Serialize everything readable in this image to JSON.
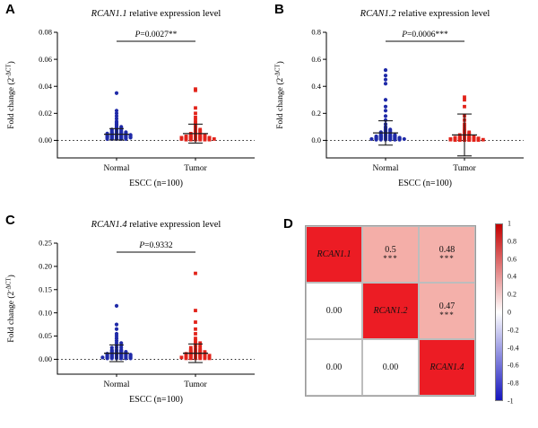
{
  "letters": [
    "A",
    "B",
    "C",
    "D"
  ],
  "accent_colors": {
    "normal_blue": "#1f2aa8",
    "tumor_red": "#e2231a",
    "heat_red": "#ec1c24"
  },
  "chart_data": [
    {
      "panel": "A",
      "type": "scatter",
      "title_gene": "RCAN1.1",
      "title_rest": " relative expression level",
      "p_prefix": "P",
      "p_text": "=0.0027**",
      "ylabel_pre": "Fold change (2",
      "ylabel_sup": "-ΔCT",
      "ylabel_post": ")",
      "xlabel": "ESCC (n=100)",
      "ylim": [
        -0.013,
        0.08
      ],
      "yticks": [
        0,
        0.02,
        0.04,
        0.06,
        0.08
      ],
      "ytick_labels": [
        "0.00",
        "0.02",
        "0.04",
        "0.06",
        "0.08"
      ],
      "groups": [
        {
          "label": "Normal",
          "color": "#1f2aa8",
          "marker": "circle",
          "mean": 0.0045,
          "sd": 0.0042,
          "points_value_count": [
            [
              0.001,
              5
            ],
            [
              0.0015,
              4
            ],
            [
              0.002,
              6
            ],
            [
              0.0025,
              5
            ],
            [
              0.003,
              6
            ],
            [
              0.0035,
              5
            ],
            [
              0.004,
              6
            ],
            [
              0.0045,
              4
            ],
            [
              0.005,
              5
            ],
            [
              0.0055,
              3
            ],
            [
              0.006,
              4
            ],
            [
              0.007,
              3
            ],
            [
              0.008,
              3
            ],
            [
              0.009,
              2
            ],
            [
              0.01,
              2
            ],
            [
              0.011,
              1
            ],
            [
              0.012,
              1
            ],
            [
              0.013,
              1
            ],
            [
              0.014,
              1
            ],
            [
              0.016,
              1
            ],
            [
              0.018,
              1
            ],
            [
              0.02,
              1
            ],
            [
              0.022,
              1
            ],
            [
              0.035,
              1
            ]
          ]
        },
        {
          "label": "Tumor",
          "color": "#e2231a",
          "marker": "square",
          "mean": 0.005,
          "sd": 0.007,
          "points_value_count": [
            [
              0.0005,
              6
            ],
            [
              0.001,
              8
            ],
            [
              0.0015,
              6
            ],
            [
              0.002,
              7
            ],
            [
              0.0025,
              5
            ],
            [
              0.003,
              5
            ],
            [
              0.0035,
              4
            ],
            [
              0.004,
              4
            ],
            [
              0.005,
              3
            ],
            [
              0.006,
              2
            ],
            [
              0.007,
              2
            ],
            [
              0.008,
              2
            ],
            [
              0.009,
              1
            ],
            [
              0.01,
              1
            ],
            [
              0.011,
              1
            ],
            [
              0.012,
              1
            ],
            [
              0.013,
              1
            ],
            [
              0.015,
              1
            ],
            [
              0.017,
              1
            ],
            [
              0.02,
              1
            ],
            [
              0.024,
              1
            ],
            [
              0.037,
              1
            ],
            [
              0.038,
              1
            ]
          ]
        }
      ],
      "zero_line_dotted": true
    },
    {
      "panel": "B",
      "type": "scatter",
      "title_gene": "RCAN1.2",
      "title_rest": " relative expression level",
      "p_prefix": "P",
      "p_text": "=0.0006***",
      "ylabel_pre": "Fold change (2",
      "ylabel_sup": "-ΔCT",
      "ylabel_post": ")",
      "xlabel": "ESCC (n=100)",
      "ylim": [
        -0.13,
        0.8
      ],
      "yticks": [
        0,
        0.2,
        0.4,
        0.6,
        0.8
      ],
      "ytick_labels": [
        "0.0",
        "0.2",
        "0.4",
        "0.6",
        "0.8"
      ],
      "groups": [
        {
          "label": "Normal",
          "color": "#1f2aa8",
          "marker": "circle",
          "mean": 0.055,
          "sd": 0.09,
          "points_value_count": [
            [
              0.005,
              6
            ],
            [
              0.01,
              8
            ],
            [
              0.015,
              6
            ],
            [
              0.02,
              6
            ],
            [
              0.025,
              5
            ],
            [
              0.03,
              5
            ],
            [
              0.035,
              4
            ],
            [
              0.04,
              4
            ],
            [
              0.05,
              3
            ],
            [
              0.06,
              3
            ],
            [
              0.07,
              2
            ],
            [
              0.08,
              2
            ],
            [
              0.09,
              1
            ],
            [
              0.1,
              1
            ],
            [
              0.12,
              1
            ],
            [
              0.15,
              1
            ],
            [
              0.18,
              1
            ],
            [
              0.22,
              1
            ],
            [
              0.25,
              1
            ],
            [
              0.3,
              1
            ],
            [
              0.42,
              1
            ],
            [
              0.45,
              1
            ],
            [
              0.48,
              1
            ],
            [
              0.52,
              1
            ]
          ]
        },
        {
          "label": "Tumor",
          "color": "#e2231a",
          "marker": "square",
          "mean": 0.04,
          "sd": 0.155,
          "points_value_count": [
            [
              0.002,
              6
            ],
            [
              0.005,
              8
            ],
            [
              0.008,
              6
            ],
            [
              0.01,
              7
            ],
            [
              0.015,
              6
            ],
            [
              0.02,
              5
            ],
            [
              0.025,
              4
            ],
            [
              0.03,
              4
            ],
            [
              0.04,
              3
            ],
            [
              0.05,
              2
            ],
            [
              0.06,
              2
            ],
            [
              0.07,
              1
            ],
            [
              0.08,
              1
            ],
            [
              0.1,
              1
            ],
            [
              0.12,
              1
            ],
            [
              0.15,
              1
            ],
            [
              0.18,
              1
            ],
            [
              0.25,
              1
            ],
            [
              0.3,
              1
            ],
            [
              0.32,
              1
            ]
          ]
        }
      ],
      "zero_line_dotted": true
    },
    {
      "panel": "C",
      "type": "scatter",
      "title_gene": "RCAN1.4",
      "title_rest": " relative expression level",
      "p_prefix": "P",
      "p_text": "=0.9332",
      "ylabel_pre": "Fold change (2",
      "ylabel_sup": "-ΔCT",
      "ylabel_post": ")",
      "xlabel": "ESCC (n=100)",
      "ylim": [
        -0.032,
        0.25
      ],
      "yticks": [
        0,
        0.05,
        0.1,
        0.15,
        0.2,
        0.25
      ],
      "ytick_labels": [
        "0.00",
        "0.05",
        "0.10",
        "0.15",
        "0.20",
        "0.25"
      ],
      "groups": [
        {
          "label": "Normal",
          "color": "#1f2aa8",
          "marker": "circle",
          "mean": 0.013,
          "sd": 0.018,
          "points_value_count": [
            [
              0.002,
              6
            ],
            [
              0.004,
              7
            ],
            [
              0.006,
              6
            ],
            [
              0.008,
              6
            ],
            [
              0.01,
              6
            ],
            [
              0.012,
              5
            ],
            [
              0.014,
              4
            ],
            [
              0.016,
              4
            ],
            [
              0.018,
              3
            ],
            [
              0.02,
              3
            ],
            [
              0.025,
              3
            ],
            [
              0.03,
              2
            ],
            [
              0.035,
              2
            ],
            [
              0.04,
              1
            ],
            [
              0.045,
              1
            ],
            [
              0.05,
              1
            ],
            [
              0.055,
              1
            ],
            [
              0.065,
              1
            ],
            [
              0.075,
              1
            ],
            [
              0.115,
              1
            ]
          ]
        },
        {
          "label": "Tumor",
          "color": "#e2231a",
          "marker": "square",
          "mean": 0.013,
          "sd": 0.02,
          "points_value_count": [
            [
              0.002,
              6
            ],
            [
              0.004,
              7
            ],
            [
              0.006,
              6
            ],
            [
              0.008,
              6
            ],
            [
              0.01,
              5
            ],
            [
              0.012,
              5
            ],
            [
              0.014,
              4
            ],
            [
              0.016,
              4
            ],
            [
              0.018,
              3
            ],
            [
              0.02,
              3
            ],
            [
              0.025,
              3
            ],
            [
              0.03,
              2
            ],
            [
              0.035,
              2
            ],
            [
              0.04,
              1
            ],
            [
              0.045,
              1
            ],
            [
              0.055,
              1
            ],
            [
              0.065,
              1
            ],
            [
              0.08,
              1
            ],
            [
              0.105,
              1
            ],
            [
              0.185,
              1
            ]
          ]
        }
      ],
      "zero_line_dotted": true
    },
    {
      "panel": "D",
      "type": "heatmap",
      "labels": [
        "RCAN1.1",
        "RCAN1.2",
        "RCAN1.4"
      ],
      "matrix": [
        [
          1,
          0.5,
          0.48
        ],
        [
          0.0,
          1,
          0.47
        ],
        [
          0.0,
          0.0,
          1
        ]
      ],
      "cells": [
        [
          {
            "text": "RCAN1.1",
            "gene": true,
            "bg": "#ec1c24"
          },
          {
            "text": "0.5",
            "stars": "***",
            "bg": "#f4aea8"
          },
          {
            "text": "0.48",
            "stars": "***",
            "bg": "#f4b1ab"
          }
        ],
        [
          {
            "text": "0.00",
            "bg": "#ffffff"
          },
          {
            "text": "RCAN1.2",
            "gene": true,
            "bg": "#ec1c24"
          },
          {
            "text": "0.47",
            "stars": "***",
            "bg": "#f4b0aa"
          }
        ],
        [
          {
            "text": "0.00",
            "bg": "#ffffff"
          },
          {
            "text": "0.00",
            "bg": "#ffffff"
          },
          {
            "text": "RCAN1.4",
            "gene": true,
            "bg": "#ec1c24"
          }
        ]
      ],
      "colorbar": {
        "tick_labels": [
          "1",
          "0.8",
          "0.6",
          "0.4",
          "0.2",
          "0",
          "-0.2",
          "-0.4",
          "-0.6",
          "-0.8",
          "-1"
        ],
        "top_color": "#c40000",
        "mid_color": "#ffffff",
        "bottom_color": "#1515be"
      }
    }
  ]
}
